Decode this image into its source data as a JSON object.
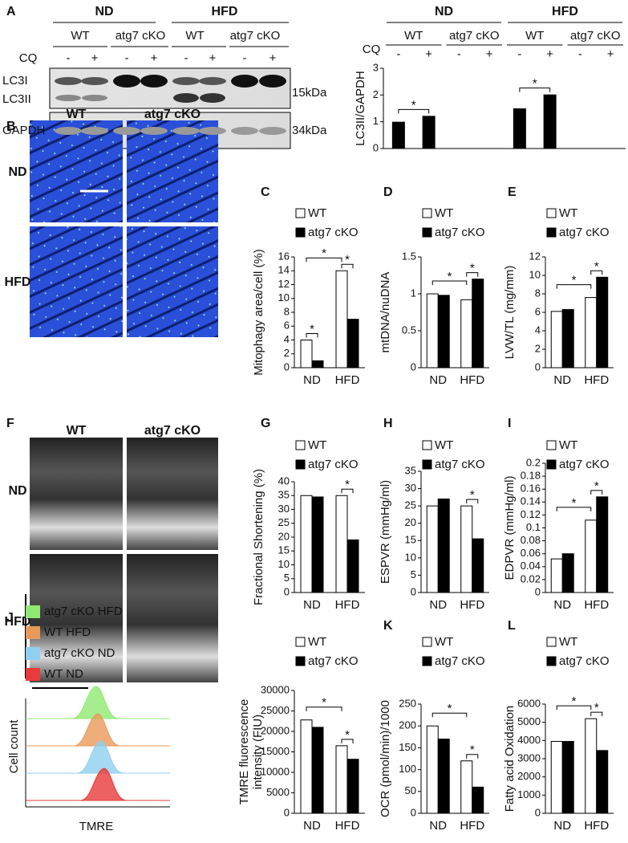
{
  "panels": {
    "letters": [
      "A",
      "B",
      "C",
      "D",
      "E",
      "F",
      "G",
      "H",
      "I",
      "J",
      "K",
      "L"
    ],
    "blot": {
      "groups": [
        "ND",
        "HFD"
      ],
      "genotypes": [
        "WT",
        "atg7 cKO",
        "WT",
        "atg7 cKO"
      ],
      "treatment": "CQ",
      "doses": [
        "-",
        "+",
        "-",
        "+",
        "-",
        "+",
        "-",
        "+"
      ],
      "bands": [
        "LC3I",
        "LC3II",
        "GAPDH"
      ],
      "sizes": [
        "15kDa",
        "34kDa"
      ]
    },
    "micrographs": {
      "columns": [
        "WT",
        "atg7 cKO"
      ],
      "rows": [
        "ND",
        "HFD"
      ]
    },
    "echo": {
      "columns": [
        "WT",
        "atg7 cKO"
      ],
      "rows": [
        "ND",
        "HFD"
      ]
    },
    "flow": {
      "legend": [
        "atg7 cKO HFD",
        "WT HFD",
        "atg7 cKO ND",
        "WT ND"
      ],
      "colors": [
        "#8fe870",
        "#e89a5a",
        "#8fd0f0",
        "#e83a3a"
      ],
      "y_label": "Cell count",
      "x_label": "TMRE"
    }
  },
  "chart_data": [
    {
      "type": "bar",
      "y_label": "LC3II/GAPDH",
      "groups": [
        "ND",
        "HFD"
      ],
      "subgroups": [
        "WT",
        "atg7 cKO",
        "WT",
        "atg7 cKO"
      ],
      "x_label": "CQ",
      "categories": [
        "-",
        "+",
        "-",
        "+",
        "-",
        "+",
        "-",
        "+"
      ],
      "values": [
        1.0,
        1.22,
        0,
        0,
        1.5,
        2.02,
        0,
        0
      ],
      "color": "#000000",
      "ylim": [
        0,
        3
      ],
      "yticks": [
        0,
        1,
        2,
        3
      ],
      "annotations": [
        "*",
        "*"
      ]
    },
    {
      "type": "grouped_bar",
      "y_label": "Mitophagy area/cell (%)",
      "categories": [
        "ND",
        "HFD"
      ],
      "series": [
        {
          "name": "WT",
          "color": "#ffffff",
          "values": [
            4.0,
            14.0
          ]
        },
        {
          "name": "atg7 cKO",
          "color": "#000000",
          "values": [
            1.0,
            7.0
          ]
        }
      ],
      "ylim": [
        0,
        16
      ],
      "yticks": [
        0,
        2,
        4,
        6,
        8,
        10,
        12,
        14,
        16
      ],
      "annotations": [
        "*",
        "*",
        "*"
      ]
    },
    {
      "type": "grouped_bar",
      "y_label": "mtDNA/nuDNA",
      "categories": [
        "ND",
        "HFD"
      ],
      "series": [
        {
          "name": "WT",
          "color": "#ffffff",
          "values": [
            1.0,
            0.92
          ]
        },
        {
          "name": "atg7 cKO",
          "color": "#000000",
          "values": [
            0.98,
            1.2
          ]
        }
      ],
      "ylim": [
        0,
        1.5
      ],
      "yticks": [
        0,
        0.5,
        1,
        1.5
      ],
      "annotations": [
        "*",
        "*"
      ]
    },
    {
      "type": "grouped_bar",
      "y_label": "LVW/TL (mg/mm)",
      "categories": [
        "ND",
        "HFD"
      ],
      "series": [
        {
          "name": "WT",
          "color": "#ffffff",
          "values": [
            6.1,
            7.6
          ]
        },
        {
          "name": "atg7 cKO",
          "color": "#000000",
          "values": [
            6.3,
            9.8
          ]
        }
      ],
      "ylim": [
        0,
        12
      ],
      "yticks": [
        0,
        2,
        4,
        6,
        8,
        10,
        12
      ],
      "annotations": [
        "*",
        "*"
      ]
    },
    {
      "type": "grouped_bar",
      "y_label": "Fractional Shortening (%)",
      "categories": [
        "ND",
        "HFD"
      ],
      "series": [
        {
          "name": "WT",
          "color": "#ffffff",
          "values": [
            35,
            35
          ]
        },
        {
          "name": "atg7 cKO",
          "color": "#000000",
          "values": [
            34.5,
            19
          ]
        }
      ],
      "ylim": [
        0,
        40
      ],
      "yticks": [
        0,
        5,
        10,
        15,
        20,
        25,
        30,
        35,
        40
      ],
      "annotations": [
        "*"
      ]
    },
    {
      "type": "grouped_bar",
      "y_label": "ESPVR (mmHg/ml)",
      "categories": [
        "ND",
        "HFD"
      ],
      "series": [
        {
          "name": "WT",
          "color": "#ffffff",
          "values": [
            25,
            25
          ]
        },
        {
          "name": "atg7 cKO",
          "color": "#000000",
          "values": [
            27,
            15.5
          ]
        }
      ],
      "ylim": [
        0,
        35
      ],
      "yticks": [
        0,
        5,
        10,
        15,
        20,
        25,
        30,
        35
      ],
      "annotations": [
        "*"
      ]
    },
    {
      "type": "grouped_bar",
      "y_label": "EDPVR (mmHg/ml)",
      "categories": [
        "ND",
        "HFD"
      ],
      "series": [
        {
          "name": "WT",
          "color": "#ffffff",
          "values": [
            0.052,
            0.112
          ]
        },
        {
          "name": "atg7 cKO",
          "color": "#000000",
          "values": [
            0.06,
            0.148
          ]
        }
      ],
      "ylim": [
        0,
        0.2
      ],
      "yticks": [
        0,
        0.02,
        0.04,
        0.06,
        0.08,
        0.1,
        0.12,
        0.14,
        0.16,
        0.18,
        0.2
      ],
      "annotations": [
        "*",
        "*"
      ]
    },
    {
      "type": "grouped_bar",
      "y_label": [
        "TMRE fluorescence",
        "intensity (FIU)"
      ],
      "categories": [
        "ND",
        "HFD"
      ],
      "series": [
        {
          "name": "WT",
          "color": "#ffffff",
          "values": [
            22800,
            16500
          ]
        },
        {
          "name": "atg7 cKO",
          "color": "#000000",
          "values": [
            21000,
            13200
          ]
        }
      ],
      "ylim": [
        0,
        30000
      ],
      "yticks": [
        0,
        5000,
        10000,
        15000,
        20000,
        25000,
        30000
      ],
      "annotations": [
        "*",
        "*"
      ]
    },
    {
      "type": "grouped_bar",
      "y_label": "OCR (pmol/min)/1000",
      "categories": [
        "ND",
        "HFD"
      ],
      "series": [
        {
          "name": "WT",
          "color": "#ffffff",
          "values": [
            200,
            120
          ]
        },
        {
          "name": "atg7 cKO",
          "color": "#000000",
          "values": [
            170,
            60
          ]
        }
      ],
      "ylim": [
        0,
        250
      ],
      "yticks": [
        0,
        50,
        100,
        150,
        200,
        250
      ],
      "annotations": [
        "*",
        "*"
      ]
    },
    {
      "type": "grouped_bar",
      "y_label": "Fatty acid Oxidation",
      "categories": [
        "ND",
        "HFD"
      ],
      "series": [
        {
          "name": "WT",
          "color": "#ffffff",
          "values": [
            3950,
            5200
          ]
        },
        {
          "name": "atg7 cKO",
          "color": "#000000",
          "values": [
            3950,
            3450
          ]
        }
      ],
      "ylim": [
        0,
        6000
      ],
      "yticks": [
        0,
        1000,
        2000,
        3000,
        4000,
        5000,
        6000
      ],
      "annotations": [
        "*",
        "*"
      ]
    }
  ]
}
